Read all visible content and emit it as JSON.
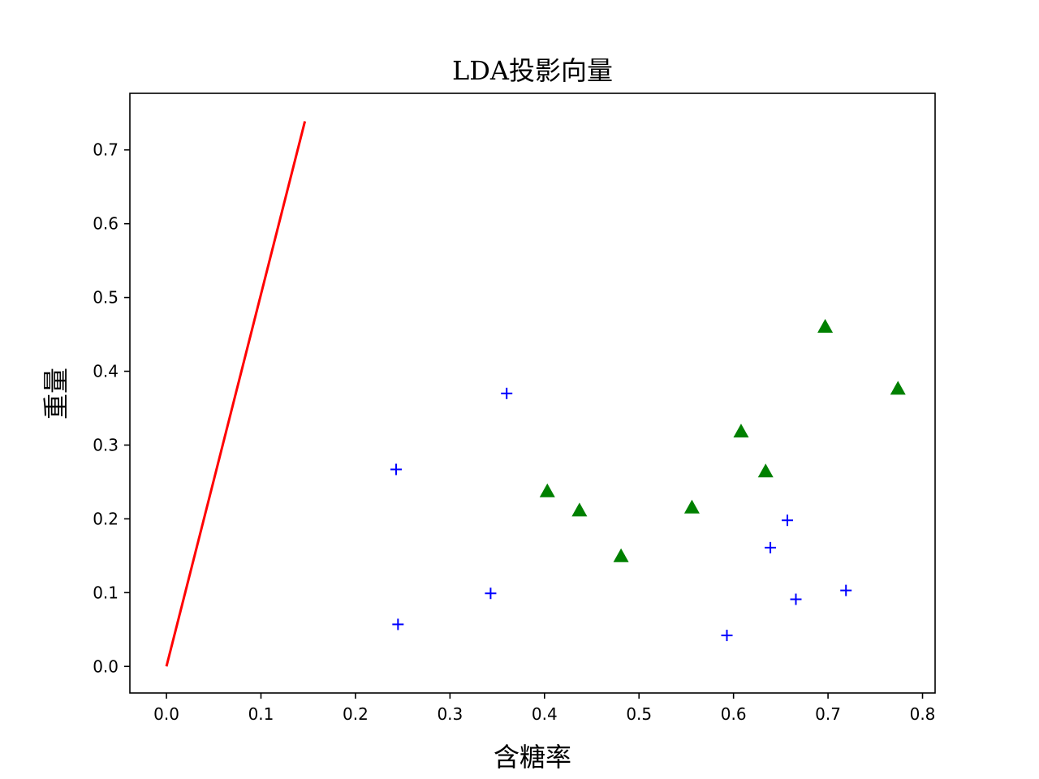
{
  "chart_data": {
    "type": "scatter",
    "title": "LDA投影向量",
    "xlabel": "含糖率",
    "ylabel": "重量",
    "xlim": [
      -0.0387,
      0.8133
    ],
    "ylim": [
      -0.036,
      0.7767
    ],
    "xticks": [
      0.0,
      0.1,
      0.2,
      0.3,
      0.4,
      0.5,
      0.6,
      0.7,
      0.8
    ],
    "yticks": [
      0.0,
      0.1,
      0.2,
      0.3,
      0.4,
      0.5,
      0.6,
      0.7
    ],
    "grid": false,
    "series": [
      {
        "marker": "plus",
        "color": "#0000ff",
        "points": [
          {
            "x": 0.243,
            "y": 0.267
          },
          {
            "x": 0.245,
            "y": 0.057
          },
          {
            "x": 0.343,
            "y": 0.099
          },
          {
            "x": 0.36,
            "y": 0.37
          },
          {
            "x": 0.593,
            "y": 0.042
          },
          {
            "x": 0.639,
            "y": 0.161
          },
          {
            "x": 0.657,
            "y": 0.198
          },
          {
            "x": 0.666,
            "y": 0.091
          },
          {
            "x": 0.719,
            "y": 0.103
          }
        ]
      },
      {
        "marker": "triangle",
        "color": "#008000",
        "points": [
          {
            "x": 0.403,
            "y": 0.237
          },
          {
            "x": 0.437,
            "y": 0.211
          },
          {
            "x": 0.481,
            "y": 0.149
          },
          {
            "x": 0.556,
            "y": 0.215
          },
          {
            "x": 0.608,
            "y": 0.318
          },
          {
            "x": 0.634,
            "y": 0.264
          },
          {
            "x": 0.697,
            "y": 0.46
          },
          {
            "x": 0.774,
            "y": 0.376
          }
        ]
      },
      {
        "type": "line",
        "color": "#ff0000",
        "points": [
          {
            "x": 0.0,
            "y": 0.0
          },
          {
            "x": 0.1465,
            "y": 0.7387
          }
        ]
      }
    ]
  }
}
